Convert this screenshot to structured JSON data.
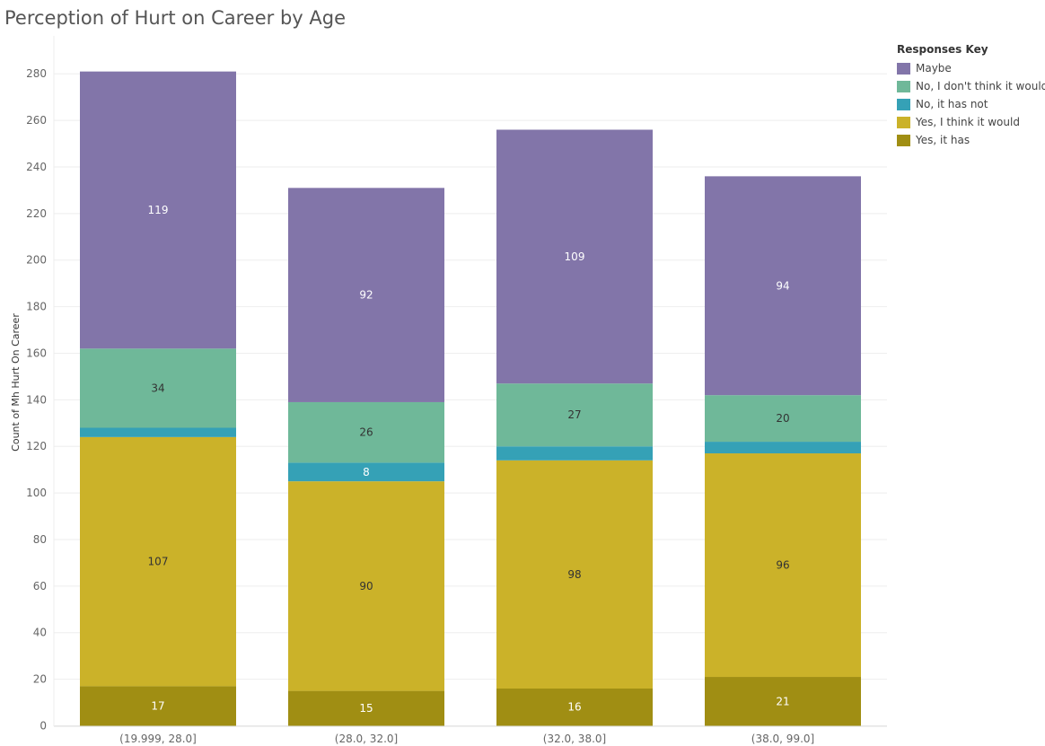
{
  "chart_data": {
    "type": "bar",
    "stacked": true,
    "title": "Perception of Hurt on Career by Age",
    "xlabel": "",
    "ylabel": "Count of Mh Hurt On Career",
    "ylim": [
      0,
      290
    ],
    "yticks": [
      0,
      20,
      40,
      60,
      80,
      100,
      120,
      140,
      160,
      180,
      200,
      220,
      240,
      260,
      280
    ],
    "grid": true,
    "legend_title": "Responses Key",
    "legend_placement": "top-right",
    "categories": [
      "(19.999, 28.0]",
      "(28.0, 32.0]",
      "(32.0, 38.0]",
      "(38.0, 99.0]"
    ],
    "series": [
      {
        "name": "Yes, it has",
        "color": "#a08e13",
        "label_color": "#ffffff",
        "values": [
          17,
          15,
          16,
          21
        ],
        "labels": [
          "17",
          "15",
          "16",
          "21"
        ]
      },
      {
        "name": "Yes, I think it would",
        "color": "#cbb229",
        "label_color": "#333333",
        "values": [
          107,
          90,
          98,
          96
        ],
        "labels": [
          "107",
          "90",
          "98",
          "96"
        ]
      },
      {
        "name": "No, it has not",
        "color": "#35a1b6",
        "label_color": "#ffffff",
        "values": [
          4,
          8,
          6,
          5
        ],
        "labels": [
          "",
          "8",
          "",
          ""
        ]
      },
      {
        "name": "No, I don't think it would",
        "color": "#6fb899",
        "label_color": "#333333",
        "values": [
          34,
          26,
          27,
          20
        ],
        "labels": [
          "34",
          "26",
          "27",
          "20"
        ]
      },
      {
        "name": "Maybe",
        "color": "#8275a9",
        "label_color": "#ffffff",
        "values": [
          119,
          92,
          109,
          94
        ],
        "labels": [
          "119",
          "92",
          "109",
          "94"
        ]
      }
    ],
    "legend_order": [
      "Maybe",
      "No, I don't think it would",
      "No, it has not",
      "Yes, I think it would",
      "Yes, it has"
    ]
  }
}
